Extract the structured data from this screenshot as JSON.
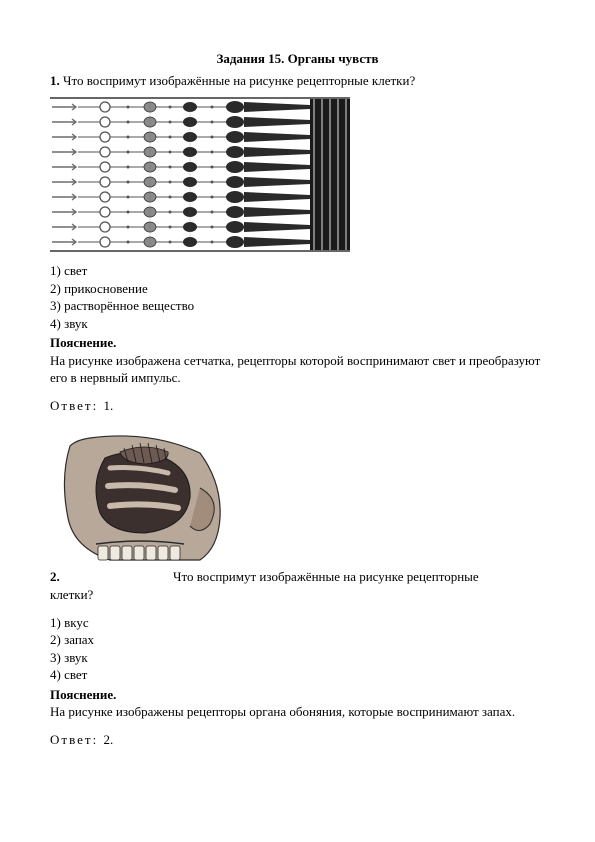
{
  "title": "Задания 15. Органы чувств",
  "q1": {
    "num": "1.",
    "text": " Что воспримут изображённые на рисунке рецепторные клетки?",
    "options": [
      "1) свет",
      "2) прикосновение",
      "3) растворённое вещество",
      "4) звук"
    ],
    "expl_label": "Пояснение.",
    "expl_text": "На рисунке изображена сетчатка, рецепторы которой воспринимают свет и преобразуют его в нервный импульс.",
    "answer_label": "Ответ:",
    "answer_value": "1."
  },
  "q2": {
    "num": "2.",
    "text": "Что воспримут изображённые на рисунке рецепторные клетки?",
    "tail": "клетки?",
    "text_inline": "Что воспримут изображённые на рисунке рецепторные",
    "options": [
      "1) вкус",
      "2) запах",
      "3) звук",
      "4) свет"
    ],
    "expl_label": "Пояснение.",
    "expl_text": "На рисунке изображены рецепторы органа обоняния, которые воспринимают запах.",
    "answer_label": "Ответ:",
    "answer_value": "2."
  },
  "figures": {
    "retina": {
      "arrow_color": "#6b6b6b",
      "cell_fill": "#2a2a2a",
      "cell_light": "#8a8a8a",
      "line_color": "#555555",
      "rows": 10
    },
    "nasal": {
      "skin": "#9a7c6a",
      "cavity": "#4a3a38",
      "cartilage": "#8c9aa4",
      "teeth": "#e8e4da",
      "bg": "#d8d4cc"
    }
  }
}
